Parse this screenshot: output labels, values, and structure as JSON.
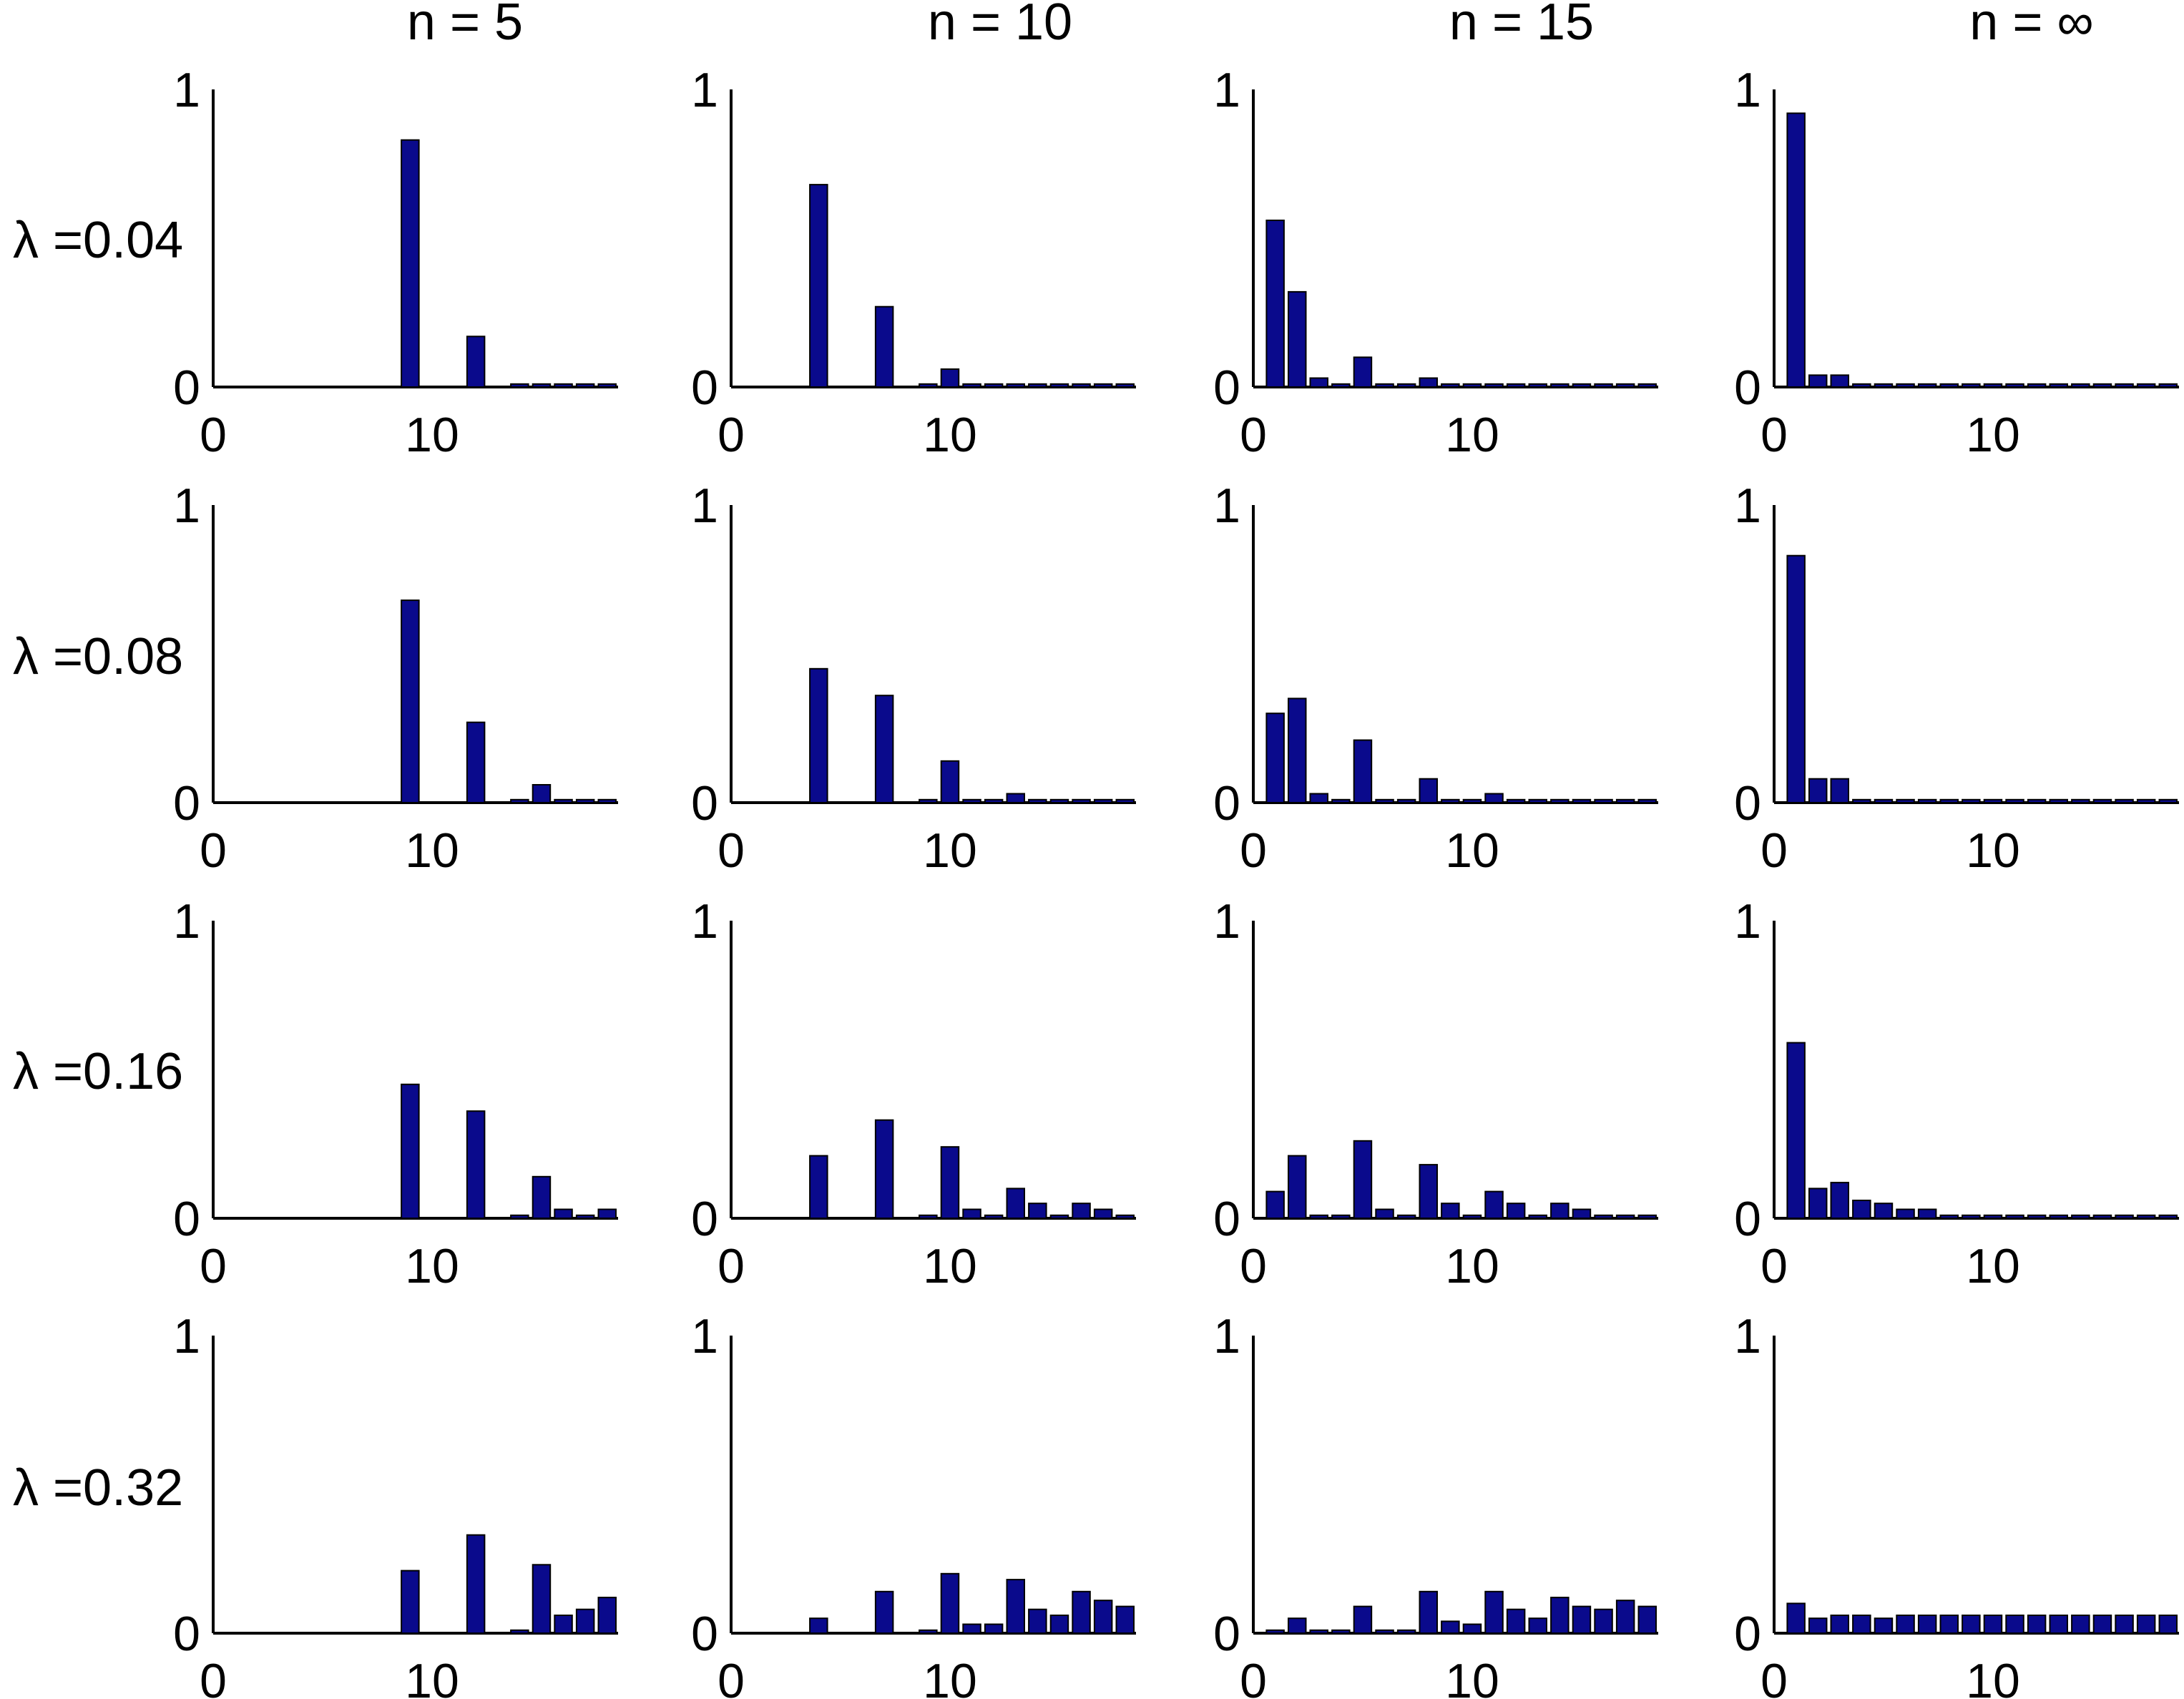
{
  "chart_data": {
    "type": "bar",
    "layout": "4x4 grid of bar charts",
    "column_titles": [
      "n = 5",
      "n = 10",
      "n = 15",
      "n = ∞"
    ],
    "row_labels": [
      "λ =0.04",
      "λ =0.08",
      "λ =0.16",
      "λ =0.32"
    ],
    "x_categories": [
      1,
      2,
      3,
      4,
      5,
      6,
      7,
      8,
      9,
      10,
      11,
      12,
      13,
      14,
      15,
      16,
      17,
      18
    ],
    "xlim": [
      0,
      18.5
    ],
    "ylim": [
      0,
      1
    ],
    "x_tick_labels": [
      "0",
      "10"
    ],
    "y_tick_labels": [
      "0",
      "1"
    ],
    "bar_color": "#0a0a8c",
    "panels": [
      [
        {
          "values": [
            0,
            0,
            0,
            0,
            0,
            0,
            0,
            0,
            0.83,
            0,
            0,
            0.17,
            0,
            0.01,
            0.01,
            0.01,
            0.01,
            0.01
          ]
        },
        {
          "values": [
            0,
            0,
            0,
            0.68,
            0,
            0,
            0.27,
            0,
            0.01,
            0.06,
            0.01,
            0.01,
            0.01,
            0.01,
            0.01,
            0.01,
            0.01,
            0.01
          ]
        },
        {
          "values": [
            0.56,
            0.32,
            0.03,
            0.01,
            0.1,
            0.01,
            0.01,
            0.03,
            0.01,
            0.01,
            0.01,
            0.01,
            0.01,
            0.01,
            0.01,
            0.01,
            0.01,
            0.01
          ]
        },
        {
          "values": [
            0.92,
            0.04,
            0.04,
            0.01,
            0.01,
            0.01,
            0.01,
            0.01,
            0.01,
            0.01,
            0.01,
            0.01,
            0.01,
            0.01,
            0.01,
            0.01,
            0.01,
            0.01
          ]
        }
      ],
      [
        {
          "values": [
            0,
            0,
            0,
            0,
            0,
            0,
            0,
            0,
            0.68,
            0,
            0,
            0.27,
            0,
            0.01,
            0.06,
            0.01,
            0.01,
            0.01
          ]
        },
        {
          "values": [
            0,
            0,
            0,
            0.45,
            0,
            0,
            0.36,
            0,
            0.01,
            0.14,
            0.01,
            0.01,
            0.03,
            0.01,
            0.01,
            0.01,
            0.01,
            0.01
          ]
        },
        {
          "values": [
            0.3,
            0.35,
            0.03,
            0.01,
            0.21,
            0.01,
            0.01,
            0.08,
            0.01,
            0.01,
            0.03,
            0.01,
            0.01,
            0.01,
            0.01,
            0.01,
            0.01,
            0.01
          ]
        },
        {
          "values": [
            0.83,
            0.08,
            0.08,
            0.01,
            0.01,
            0.01,
            0.01,
            0.01,
            0.01,
            0.01,
            0.01,
            0.01,
            0.01,
            0.01,
            0.01,
            0.01,
            0.01,
            0.01
          ]
        }
      ],
      [
        {
          "values": [
            0,
            0,
            0,
            0,
            0,
            0,
            0,
            0,
            0.45,
            0,
            0,
            0.36,
            0,
            0.01,
            0.14,
            0.03,
            0.01,
            0.03
          ]
        },
        {
          "values": [
            0,
            0,
            0,
            0.21,
            0,
            0,
            0.33,
            0,
            0.01,
            0.24,
            0.03,
            0.01,
            0.1,
            0.05,
            0.01,
            0.05,
            0.03,
            0.01
          ]
        },
        {
          "values": [
            0.09,
            0.21,
            0.01,
            0.01,
            0.26,
            0.03,
            0.01,
            0.18,
            0.05,
            0.01,
            0.09,
            0.05,
            0.01,
            0.05,
            0.03,
            0.01,
            0.01,
            0.01
          ]
        },
        {
          "values": [
            0.59,
            0.1,
            0.12,
            0.06,
            0.05,
            0.03,
            0.03,
            0.01,
            0.01,
            0.01,
            0.01,
            0.01,
            0.01,
            0.01,
            0.01,
            0.01,
            0.01,
            0.01
          ]
        }
      ],
      [
        {
          "values": [
            0,
            0,
            0,
            0,
            0,
            0,
            0,
            0,
            0.21,
            0,
            0,
            0.33,
            0,
            0.01,
            0.23,
            0.06,
            0.08,
            0.12
          ]
        },
        {
          "values": [
            0,
            0,
            0,
            0.05,
            0,
            0,
            0.14,
            0,
            0.01,
            0.2,
            0.03,
            0.03,
            0.18,
            0.08,
            0.06,
            0.14,
            0.11,
            0.09
          ]
        },
        {
          "values": [
            0.01,
            0.05,
            0.01,
            0.01,
            0.09,
            0.01,
            0.01,
            0.14,
            0.04,
            0.03,
            0.14,
            0.08,
            0.05,
            0.12,
            0.09,
            0.08,
            0.11,
            0.09
          ]
        },
        {
          "values": [
            0.1,
            0.05,
            0.06,
            0.06,
            0.05,
            0.06,
            0.06,
            0.06,
            0.06,
            0.06,
            0.06,
            0.06,
            0.06,
            0.06,
            0.06,
            0.06,
            0.06,
            0.06
          ]
        }
      ]
    ]
  }
}
